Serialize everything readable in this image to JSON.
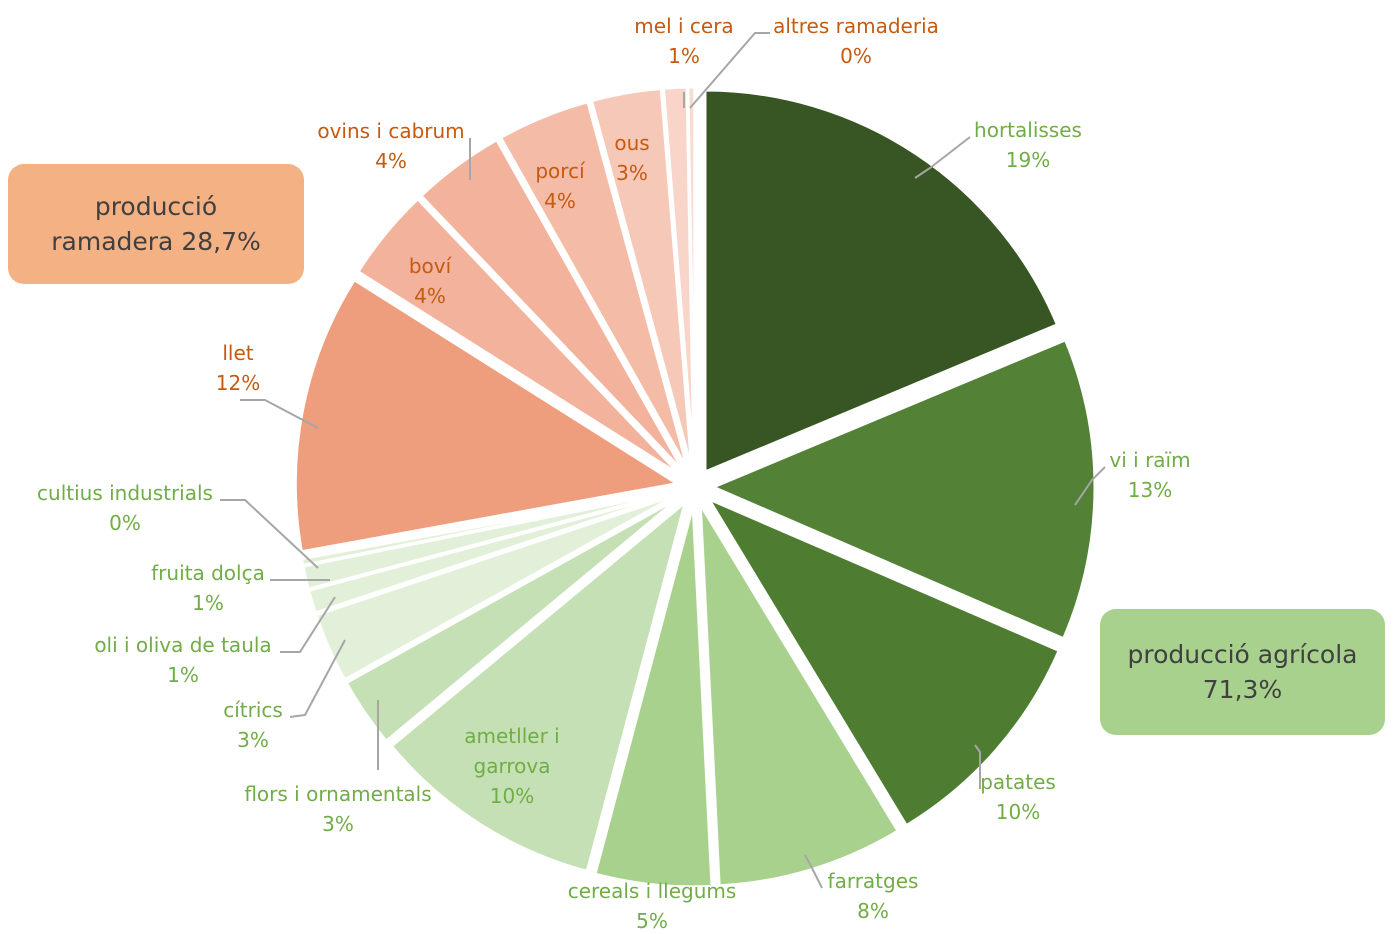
{
  "chart_data": {
    "type": "pie",
    "total_label_agricola": "producció agrícola",
    "total_value_agricola": "71,3%",
    "total_label_ramadera": "producció\nramadera 28,7%",
    "slices": [
      {
        "name": "hortalisses",
        "value": 19,
        "label": "19%",
        "group": "agricola",
        "color": "#375623"
      },
      {
        "name": "vi i raïm",
        "value": 13,
        "label": "13%",
        "group": "agricola",
        "color": "#538135"
      },
      {
        "name": "patates",
        "value": 10,
        "label": "10%",
        "group": "agricola",
        "color": "#4e7d31"
      },
      {
        "name": "farratges",
        "value": 8,
        "label": "8%",
        "group": "agricola",
        "color": "#a9d18e"
      },
      {
        "name": "cereals i llegums",
        "value": 5,
        "label": "5%",
        "group": "agricola",
        "color": "#a9d18e"
      },
      {
        "name": "ametller i garrova",
        "value": 10,
        "label": "10%",
        "group": "agricola",
        "color": "#c5e0b4"
      },
      {
        "name": "flors i ornamentals",
        "value": 3,
        "label": "3%",
        "group": "agricola",
        "color": "#c5e0b4"
      },
      {
        "name": "cítrics",
        "value": 3,
        "label": "3%",
        "group": "agricola",
        "color": "#e2f0d9"
      },
      {
        "name": "oli i oliva de taula",
        "value": 1,
        "label": "1%",
        "group": "agricola",
        "color": "#e2f0d9"
      },
      {
        "name": "fruita dolça",
        "value": 1,
        "label": "1%",
        "group": "agricola",
        "color": "#e2f0d9"
      },
      {
        "name": "cultius industrials",
        "value": 0.3,
        "label": "0%",
        "group": "agricola",
        "color": "#e2f0d9"
      },
      {
        "name": "llet",
        "value": 12,
        "label": "12%",
        "group": "ramadera",
        "color": "#ee9e7c"
      },
      {
        "name": "boví",
        "value": 4,
        "label": "4%",
        "group": "ramadera",
        "color": "#f2b29b"
      },
      {
        "name": "ovins i cabrum",
        "value": 4,
        "label": "4%",
        "group": "ramadera",
        "color": "#f2b29b"
      },
      {
        "name": "porcí",
        "value": 4,
        "label": "4%",
        "group": "ramadera",
        "color": "#f4bba6"
      },
      {
        "name": "ous",
        "value": 3,
        "label": "3%",
        "group": "ramadera",
        "color": "#f6c8b8"
      },
      {
        "name": "mel i cera",
        "value": 1,
        "label": "1%",
        "group": "ramadera",
        "color": "#f8d5c8"
      },
      {
        "name": "altres ramaderia",
        "value": 0.3,
        "label": "0%",
        "group": "ramadera",
        "color": "#f9dcd1"
      }
    ],
    "label_colors": {
      "agricola": "#70ad47",
      "ramadera": "#c55a11"
    },
    "box_colors": {
      "agricola": "#a9d18e",
      "ramadera": "#f4b183"
    }
  }
}
